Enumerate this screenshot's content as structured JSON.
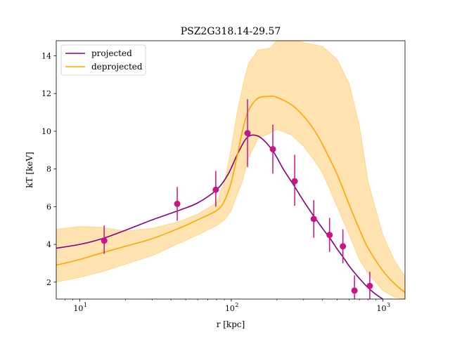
{
  "chart_data": {
    "type": "line",
    "title": "PSZ2G318.14-29.57",
    "xlabel": "r [kpc]",
    "ylabel": "kT [keV]",
    "xscale": "log",
    "xlim": [
      7,
      1400
    ],
    "ylim": [
      1.1,
      14.8
    ],
    "x_ticks": [
      {
        "value": 10,
        "label": "10"
      },
      {
        "value": 100,
        "label": "10"
      },
      {
        "value": 1000,
        "label": "10"
      }
    ],
    "x_tick_exponents": [
      "1",
      "2",
      "3"
    ],
    "y_ticks": [
      2,
      4,
      6,
      8,
      10,
      12,
      14
    ],
    "legend": {
      "position": "top-left",
      "entries": [
        {
          "label": "projected",
          "color": "#800080"
        },
        {
          "label": "deprojected",
          "color": "#FFA500"
        }
      ]
    },
    "series": [
      {
        "name": "projected",
        "kind": "line",
        "color": "#800080",
        "x": [
          7,
          10,
          14,
          20,
          30,
          45,
          60,
          80,
          95,
          110,
          125,
          140,
          160,
          190,
          220,
          260,
          300,
          350,
          400,
          450,
          500,
          550,
          600,
          700,
          800,
          900,
          1000
        ],
        "y": [
          3.8,
          4.0,
          4.3,
          4.75,
          5.3,
          5.8,
          6.2,
          6.9,
          7.7,
          8.8,
          9.6,
          9.8,
          9.6,
          8.9,
          8.0,
          7.1,
          6.3,
          5.5,
          4.85,
          4.3,
          3.75,
          3.3,
          2.85,
          2.2,
          1.7,
          1.35,
          1.1
        ]
      },
      {
        "name": "deprojected",
        "kind": "line",
        "color": "#FFA500",
        "x": [
          7,
          10,
          14,
          20,
          30,
          45,
          60,
          80,
          90,
          100,
          110,
          120,
          130,
          150,
          180,
          200,
          250,
          300,
          350,
          400,
          500,
          600,
          700,
          800,
          1000,
          1200,
          1400
        ],
        "y": [
          2.9,
          3.2,
          3.55,
          3.9,
          4.3,
          4.85,
          5.3,
          5.8,
          6.3,
          7.3,
          8.8,
          10.2,
          11.1,
          11.75,
          11.85,
          11.8,
          11.4,
          10.8,
          10.1,
          9.3,
          7.7,
          6.1,
          4.8,
          3.8,
          2.6,
          1.9,
          1.45
        ]
      }
    ],
    "band": {
      "name": "deprojected uncertainty",
      "color": "#FFA500",
      "opacity": 0.3,
      "x": [
        7,
        10,
        14,
        20,
        30,
        45,
        60,
        80,
        90,
        100,
        110,
        120,
        130,
        150,
        180,
        200,
        250,
        300,
        350,
        400,
        500,
        600,
        700,
        800,
        1000,
        1200,
        1400
      ],
      "upper": [
        4.8,
        4.95,
        4.9,
        4.7,
        4.85,
        5.2,
        5.6,
        6.2,
        7.3,
        9.1,
        11.1,
        12.5,
        13.6,
        14.3,
        14.4,
        14.8,
        14.9,
        14.7,
        14.6,
        14.5,
        13.8,
        12.5,
        10.3,
        7.3,
        4.5,
        3.1,
        2.3
      ],
      "lower": [
        2.0,
        2.25,
        2.55,
        2.95,
        3.4,
        4.05,
        4.5,
        5.0,
        5.3,
        5.8,
        6.7,
        7.5,
        8.6,
        9.6,
        9.9,
        10.1,
        9.8,
        9.2,
        8.5,
        7.8,
        6.0,
        4.5,
        3.2,
        2.45,
        1.55,
        1.2,
        1.1
      ]
    },
    "points": {
      "name": "data",
      "color": "#C71585",
      "x": [
        14.5,
        44,
        79,
        128,
        188,
        262,
        350,
        445,
        545,
        650,
        820
      ],
      "y": [
        4.2,
        6.15,
        6.9,
        9.9,
        9.05,
        7.35,
        5.35,
        4.5,
        3.9,
        1.55,
        1.8
      ],
      "yerr_low": [
        0.7,
        0.9,
        0.9,
        1.8,
        1.3,
        1.3,
        1.0,
        0.9,
        0.9,
        0.7,
        0.7
      ],
      "yerr_high": [
        0.8,
        0.9,
        1.0,
        1.8,
        1.3,
        1.4,
        1.0,
        0.9,
        0.9,
        0.8,
        0.75
      ]
    }
  }
}
